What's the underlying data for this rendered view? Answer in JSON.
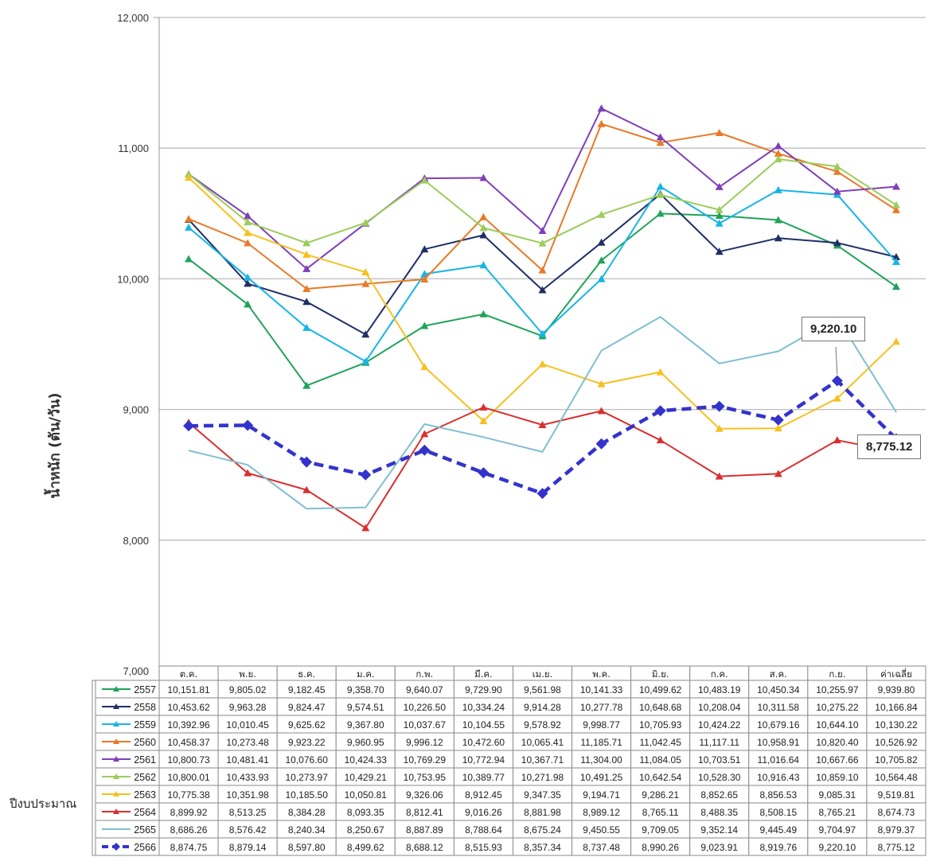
{
  "chart_data": {
    "type": "line",
    "title": "",
    "xlabel": "",
    "ylabel": "น้ำหนัก (ตัน/วัน)",
    "ylim": [
      7000,
      12000
    ],
    "yticks": [
      "7,000",
      "8,000",
      "9,000",
      "10,000",
      "11,000",
      "12,000"
    ],
    "categories": [
      "ต.ค.",
      "พ.ย.",
      "ธ.ค.",
      "ม.ค.",
      "ก.พ.",
      "มี.ค.",
      "เม.ย.",
      "พ.ค.",
      "มิ.ย.",
      "ก.ค.",
      "ส.ค.",
      "ก.ย.",
      "ค่าเฉลี่ย"
    ],
    "table_label": "ปีงบประมาณ",
    "callouts": [
      "9,220.10",
      "8,775.12"
    ],
    "series": [
      {
        "name": "2557",
        "color": "#20a35a",
        "marker": "triangle",
        "values": [
          10151.81,
          9805.02,
          9182.45,
          9358.7,
          9640.07,
          9729.9,
          9561.98,
          10141.33,
          10499.62,
          10483.19,
          10450.34,
          10255.97,
          9939.8
        ],
        "labels": [
          "10,151.81",
          "9,805.02",
          "9,182.45",
          "9,358.70",
          "9,640.07",
          "9,729.90",
          "9,561.98",
          "10,141.33",
          "10,499.62",
          "10,483.19",
          "10,450.34",
          "10,255.97",
          "9,939.80"
        ]
      },
      {
        "name": "2558",
        "color": "#1f2f66",
        "marker": "triangle",
        "values": [
          10453.62,
          9963.28,
          9824.47,
          9574.51,
          10226.5,
          10334.24,
          9914.28,
          10277.78,
          10648.68,
          10208.04,
          10311.58,
          10275.22,
          10166.84
        ],
        "labels": [
          "10,453.62",
          "9,963.28",
          "9,824.47",
          "9,574.51",
          "10,226.50",
          "10,334.24",
          "9,914.28",
          "10,277.78",
          "10,648.68",
          "10,208.04",
          "10,311.58",
          "10,275.22",
          "10,166.84"
        ]
      },
      {
        "name": "2559",
        "color": "#17b4e6",
        "marker": "triangle",
        "values": [
          10392.96,
          10010.45,
          9625.62,
          9367.8,
          10037.67,
          10104.55,
          9578.92,
          9998.77,
          10705.93,
          10424.22,
          10679.16,
          10644.1,
          10130.22
        ],
        "labels": [
          "10,392.96",
          "10,010.45",
          "9,625.62",
          "9,367.80",
          "10,037.67",
          "10,104.55",
          "9,578.92",
          "9,998.77",
          "10,705.93",
          "10,424.22",
          "10,679.16",
          "10,644.10",
          "10,130.22"
        ]
      },
      {
        "name": "2560",
        "color": "#e87a28",
        "marker": "triangle",
        "values": [
          10458.37,
          10273.48,
          9923.22,
          9960.95,
          9996.12,
          10472.6,
          10065.41,
          11185.71,
          11042.45,
          11117.11,
          10958.91,
          10820.4,
          10526.92
        ],
        "labels": [
          "10,458.37",
          "10,273.48",
          "9,923.22",
          "9,960.95",
          "9,996.12",
          "10,472.60",
          "10,065.41",
          "11,185.71",
          "11,042.45",
          "11,117.11",
          "10,958.91",
          "10,820.40",
          "10,526.92"
        ]
      },
      {
        "name": "2561",
        "color": "#7f3fb8",
        "marker": "triangle",
        "values": [
          10800.73,
          10481.41,
          10076.6,
          10424.33,
          10769.29,
          10772.94,
          10367.71,
          11304.0,
          11084.05,
          10703.51,
          11016.64,
          10667.66,
          10705.82
        ],
        "labels": [
          "10,800.73",
          "10,481.41",
          "10,076.60",
          "10,424.33",
          "10,769.29",
          "10,772.94",
          "10,367.71",
          "11,304.00",
          "11,084.05",
          "10,703.51",
          "11,016.64",
          "10,667.66",
          "10,705.82"
        ]
      },
      {
        "name": "2562",
        "color": "#9ccc5a",
        "marker": "triangle",
        "values": [
          10800.01,
          10433.93,
          10273.97,
          10429.21,
          10753.95,
          10389.77,
          10271.98,
          10491.25,
          10642.54,
          10528.3,
          10916.43,
          10859.1,
          10564.48
        ],
        "labels": [
          "10,800.01",
          "10,433.93",
          "10,273.97",
          "10,429.21",
          "10,753.95",
          "10,389.77",
          "10,271.98",
          "10,491.25",
          "10,642.54",
          "10,528.30",
          "10,916.43",
          "10,859.10",
          "10,564.48"
        ]
      },
      {
        "name": "2563",
        "color": "#f5c121",
        "marker": "triangle",
        "values": [
          10775.38,
          10351.98,
          10185.5,
          10050.81,
          9326.06,
          8912.45,
          9347.35,
          9194.71,
          9286.21,
          8852.65,
          8856.53,
          9085.31,
          9519.81
        ],
        "labels": [
          "10,775.38",
          "10,351.98",
          "10,185.50",
          "10,050.81",
          "9,326.06",
          "8,912.45",
          "9,347.35",
          "9,194.71",
          "9,286.21",
          "8,852.65",
          "8,856.53",
          "9,085.31",
          "9,519.81"
        ]
      },
      {
        "name": "2564",
        "color": "#d83030",
        "marker": "triangle",
        "values": [
          8899.92,
          8513.25,
          8384.28,
          8093.35,
          8812.41,
          9016.26,
          8881.98,
          8989.12,
          8765.11,
          8488.35,
          8508.15,
          8765.21,
          8674.73
        ],
        "labels": [
          "8,899.92",
          "8,513.25",
          "8,384.28",
          "8,093.35",
          "8,812.41",
          "9,016.26",
          "8,881.98",
          "8,989.12",
          "8,765.11",
          "8,488.35",
          "8,508.15",
          "8,765.21",
          "8,674.73"
        ]
      },
      {
        "name": "2565",
        "color": "#7fbfd0",
        "marker": "none",
        "values": [
          8686.26,
          8576.42,
          8240.34,
          8250.67,
          8887.89,
          8788.64,
          8675.24,
          9450.55,
          9709.05,
          9352.14,
          9445.49,
          9704.97,
          8979.37
        ],
        "labels": [
          "8,686.26",
          "8,576.42",
          "8,240.34",
          "8,250.67",
          "8,887.89",
          "8,788.64",
          "8,675.24",
          "9,450.55",
          "9,709.05",
          "9,352.14",
          "9,445.49",
          "9,704.97",
          "8,979.37"
        ]
      },
      {
        "name": "2566",
        "color": "#3333cc",
        "marker": "diamond",
        "dashed": true,
        "values": [
          8874.75,
          8879.14,
          8597.8,
          8499.62,
          8688.12,
          8515.93,
          8357.34,
          8737.48,
          8990.26,
          9023.91,
          8919.76,
          9220.1,
          8775.12
        ],
        "labels": [
          "8,874.75",
          "8,879.14",
          "8,597.80",
          "8,499.62",
          "8,688.12",
          "8,515.93",
          "8,357.34",
          "8,737.48",
          "8,990.26",
          "9,023.91",
          "8,919.76",
          "9,220.10",
          "8,775.12"
        ]
      }
    ],
    "grid": true,
    "legend": "data-table"
  }
}
